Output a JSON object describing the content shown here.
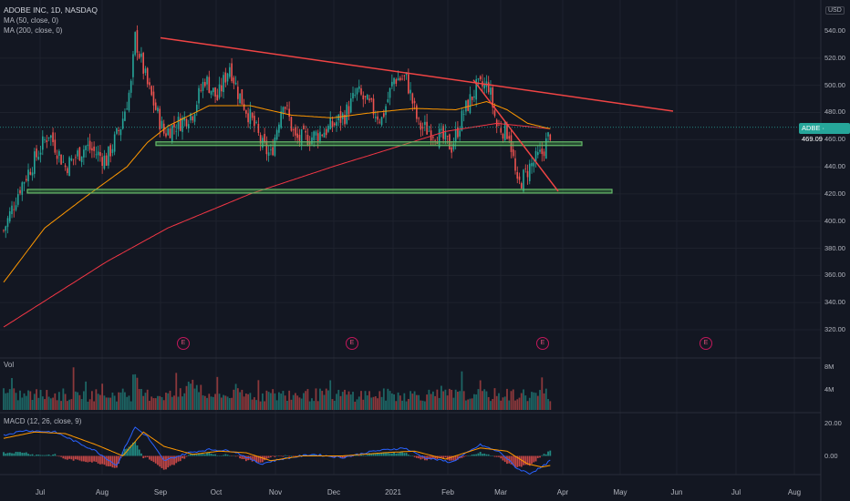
{
  "header": {
    "symbol_line": "ADOBE INC, 1D, NASDAQ",
    "ma50": "MA (50, close, 0)",
    "ma200": "MA (200, close, 0)",
    "vol": "Vol",
    "macd": "MACD (12, 26, close, 9)"
  },
  "currency": "USD",
  "last_price": {
    "ticker": "ADBE",
    "value": "469.09"
  },
  "earnings_marker": "E",
  "colors": {
    "up": "#26a69a",
    "down": "#ef5350",
    "trend": "#f04444",
    "support": "#4caf50",
    "ma50": "#ff9800",
    "ma200": "#f23645",
    "macd": "#2962ff",
    "signal": "#ff9800"
  },
  "chart_data": [
    {
      "type": "candlestick",
      "title": "ADOBE INC, 1D, NASDAQ",
      "x_ticks": [
        "Jul",
        "Aug",
        "Sep",
        "Oct",
        "Nov",
        "Dec",
        "2021",
        "Feb",
        "Mar",
        "Apr",
        "May",
        "Jun",
        "Jul",
        "Aug"
      ],
      "y_ticks": [
        "540.00",
        "520.00",
        "500.00",
        "480.00",
        "460.00",
        "440.00",
        "420.00",
        "400.00",
        "380.00",
        "360.00",
        "340.00",
        "320.00"
      ],
      "ylim": [
        306,
        550
      ],
      "last": 469.09,
      "close_keys": [
        [
          0,
          393
        ],
        [
          8,
          425
        ],
        [
          15,
          445
        ],
        [
          22,
          465
        ],
        [
          30,
          440
        ],
        [
          40,
          455
        ],
        [
          50,
          445
        ],
        [
          57,
          470
        ],
        [
          62,
          500
        ],
        [
          64,
          535
        ],
        [
          70,
          500
        ],
        [
          78,
          465
        ],
        [
          85,
          472
        ],
        [
          92,
          480
        ],
        [
          98,
          505
        ],
        [
          104,
          490
        ],
        [
          110,
          515
        ],
        [
          114,
          495
        ],
        [
          122,
          470
        ],
        [
          126,
          455
        ],
        [
          130,
          448
        ],
        [
          136,
          490
        ],
        [
          142,
          460
        ],
        [
          150,
          462
        ],
        [
          158,
          468
        ],
        [
          166,
          478
        ],
        [
          172,
          495
        ],
        [
          176,
          488
        ],
        [
          184,
          475
        ],
        [
          190,
          505
        ],
        [
          196,
          505
        ],
        [
          202,
          470
        ],
        [
          210,
          465
        ],
        [
          218,
          455
        ],
        [
          224,
          480
        ],
        [
          230,
          498
        ],
        [
          236,
          500
        ],
        [
          240,
          470
        ],
        [
          246,
          465
        ],
        [
          250,
          425
        ],
        [
          256,
          440
        ],
        [
          262,
          450
        ],
        [
          266,
          465
        ]
      ],
      "ma50_keys": [
        [
          0,
          355
        ],
        [
          20,
          395
        ],
        [
          40,
          418
        ],
        [
          60,
          440
        ],
        [
          70,
          458
        ],
        [
          80,
          470
        ],
        [
          100,
          485
        ],
        [
          120,
          485
        ],
        [
          140,
          478
        ],
        [
          160,
          476
        ],
        [
          180,
          480
        ],
        [
          200,
          483
        ],
        [
          220,
          482
        ],
        [
          235,
          488
        ],
        [
          245,
          482
        ],
        [
          255,
          472
        ],
        [
          266,
          468
        ]
      ],
      "ma200_keys": [
        [
          0,
          322
        ],
        [
          50,
          370
        ],
        [
          80,
          395
        ],
        [
          120,
          420
        ],
        [
          160,
          440
        ],
        [
          190,
          454
        ],
        [
          215,
          466
        ],
        [
          240,
          472
        ],
        [
          266,
          468
        ]
      ],
      "resistance_line": [
        [
          535
        ],
        [
          481
        ]
      ],
      "support_levels": [
        457,
        422
      ],
      "steep_trend": [
        [
          504
        ],
        [
          422
        ]
      ]
    },
    {
      "type": "bar",
      "title": "Vol",
      "y_ticks": [
        "8M",
        "4M"
      ]
    },
    {
      "type": "line",
      "title": "MACD (12, 26, close, 9)",
      "y_ticks": [
        "20.00",
        "0.00"
      ]
    }
  ]
}
